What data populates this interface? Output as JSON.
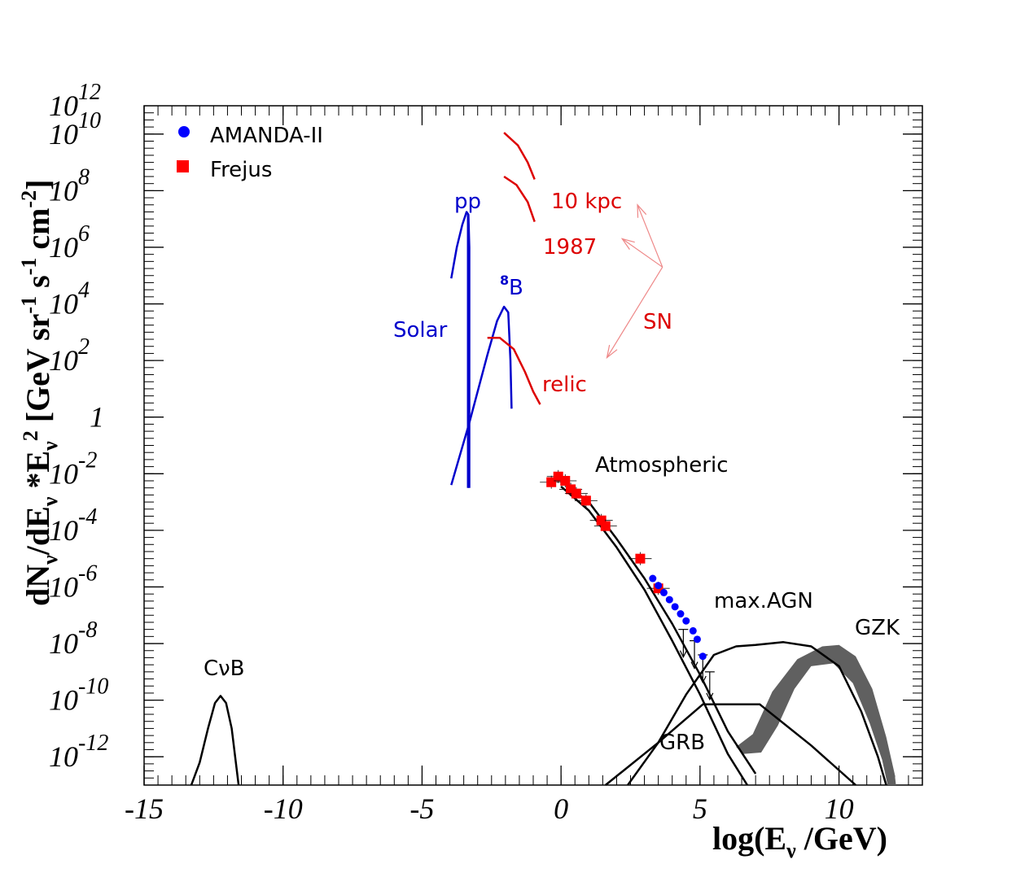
{
  "chart_data": {
    "type": "line",
    "title": "",
    "xlabel": "log(E",
    "xlabel_sub": "ν",
    "xlabel_tail": " /GeV)",
    "ylabel": "dN_ν/dE_ν *E_ν² [GeV sr⁻¹ s⁻¹ cm⁻²]",
    "ylabel_parts": {
      "a": "dN",
      "sub1": "ν",
      "b": "/dE",
      "sub2": "ν",
      "c": " *E",
      "sub3": "ν",
      "sup_sq": "2",
      "d": " [GeV sr",
      "sup1": "-1",
      "e": " s",
      "sup2": "-1",
      "f": " cm",
      "sup3": "-2",
      "g": "]"
    },
    "xlim": [
      -15,
      13
    ],
    "ylim_log10": [
      -13,
      11
    ],
    "x_ticks": [
      {
        "v": -15,
        "label": "-15"
      },
      {
        "v": -10,
        "label": "-10"
      },
      {
        "v": -5,
        "label": "-5"
      },
      {
        "v": 0,
        "label": "0"
      },
      {
        "v": 5,
        "label": "5"
      },
      {
        "v": 10,
        "label": "10"
      }
    ],
    "y_ticks": [
      {
        "v": -12,
        "base": "10",
        "exp": "-12"
      },
      {
        "v": -10,
        "base": "10",
        "exp": "-10"
      },
      {
        "v": -8,
        "base": "10",
        "exp": "-8"
      },
      {
        "v": -6,
        "base": "10",
        "exp": "-6"
      },
      {
        "v": -4,
        "base": "10",
        "exp": "-4"
      },
      {
        "v": -2,
        "base": "10",
        "exp": "-2"
      },
      {
        "v": 0,
        "base": "1",
        "exp": ""
      },
      {
        "v": 2,
        "base": "10",
        "exp": "2"
      },
      {
        "v": 4,
        "base": "10",
        "exp": "4"
      },
      {
        "v": 6,
        "base": "10",
        "exp": "6"
      },
      {
        "v": 8,
        "base": "10",
        "exp": "8"
      },
      {
        "v": 10,
        "base": "10",
        "exp": "10"
      },
      {
        "v": 12,
        "base": "10",
        "exp": "12"
      }
    ],
    "colors": {
      "blue": "#0000cc",
      "red": "#dd0000",
      "black": "#000000",
      "gzk": "#606060",
      "sn_arrow": "#ee8888",
      "marker_blue": "#0000ff",
      "marker_red": "#ff0000"
    },
    "legend": [
      {
        "label": "AMANDA-II",
        "marker": "circle",
        "color": "#0000ff"
      },
      {
        "label": "Frejus",
        "marker": "square",
        "color": "#ff0000"
      }
    ],
    "annotations": {
      "cnb": "CνB",
      "pp": "pp",
      "b8_sup": "8",
      "b8": "B",
      "solar": "Solar",
      "kpc": "10 kpc",
      "y1987": "1987",
      "sn": "SN",
      "relic": "relic",
      "atmospheric": "Atmospheric",
      "max_agn": "max.AGN",
      "gzk": "GZK",
      "grb": "GRB"
    },
    "series": [
      {
        "name": "CνB",
        "color": "#000000",
        "points": [
          [
            -13.3,
            -13
          ],
          [
            -13.0,
            -12.2
          ],
          [
            -12.7,
            -11.0
          ],
          [
            -12.45,
            -10.1
          ],
          [
            -12.25,
            -9.85
          ],
          [
            -12.05,
            -10.1
          ],
          [
            -11.85,
            -11.0
          ],
          [
            -11.7,
            -12.2
          ],
          [
            -11.6,
            -13
          ]
        ]
      },
      {
        "name": "pp",
        "color": "#0000cc",
        "points": [
          [
            -3.95,
            4.9
          ],
          [
            -3.75,
            6.0
          ],
          [
            -3.55,
            6.8
          ],
          [
            -3.4,
            7.25
          ],
          [
            -3.33,
            7.15
          ],
          [
            -3.3,
            6.0
          ],
          [
            -3.3,
            -2.5
          ]
        ]
      },
      {
        "name": "pp-vertical",
        "color": "#0000cc",
        "points": [
          [
            -3.35,
            7.2
          ],
          [
            -3.35,
            -2.5
          ]
        ]
      },
      {
        "name": "8B",
        "color": "#0000cc",
        "points": [
          [
            -3.95,
            -2.4
          ],
          [
            -3.3,
            -0.2
          ],
          [
            -2.65,
            2.2
          ],
          [
            -2.3,
            3.4
          ],
          [
            -2.05,
            3.9
          ],
          [
            -1.9,
            3.7
          ],
          [
            -1.82,
            2.0
          ],
          [
            -1.78,
            0.3
          ]
        ]
      },
      {
        "name": "SN 10 kpc",
        "color": "#dd0000",
        "points": [
          [
            -2.05,
            10.05
          ],
          [
            -1.55,
            9.6
          ],
          [
            -1.2,
            9.0
          ],
          [
            -0.95,
            8.4
          ]
        ]
      },
      {
        "name": "SN 1987",
        "color": "#dd0000",
        "points": [
          [
            -2.05,
            8.5
          ],
          [
            -1.6,
            8.2
          ],
          [
            -1.2,
            7.6
          ],
          [
            -0.95,
            6.9
          ]
        ]
      },
      {
        "name": "SN relic",
        "color": "#dd0000",
        "points": [
          [
            -2.65,
            2.8
          ],
          [
            -2.2,
            2.8
          ],
          [
            -1.7,
            2.4
          ],
          [
            -1.3,
            1.6
          ],
          [
            -1.0,
            0.9
          ],
          [
            -0.75,
            0.45
          ]
        ]
      },
      {
        "name": "atmospheric-upper",
        "color": "#000000",
        "points": [
          [
            0,
            -2.25
          ],
          [
            1,
            -3.0
          ],
          [
            2,
            -4.3
          ],
          [
            3,
            -5.7
          ],
          [
            4,
            -7.3
          ],
          [
            5,
            -9.1
          ],
          [
            6,
            -11.1
          ],
          [
            7.0,
            -12.6
          ]
        ]
      },
      {
        "name": "atmospheric-lower",
        "color": "#000000",
        "points": [
          [
            0,
            -2.45
          ],
          [
            1,
            -3.3
          ],
          [
            2,
            -4.6
          ],
          [
            3,
            -6.1
          ],
          [
            4,
            -7.9
          ],
          [
            5,
            -9.8
          ],
          [
            6,
            -11.9
          ],
          [
            6.7,
            -13
          ]
        ]
      },
      {
        "name": "max.AGN",
        "color": "#000000",
        "points": [
          [
            2.4,
            -13
          ],
          [
            3.5,
            -11.5
          ],
          [
            4.5,
            -9.8
          ],
          [
            5.5,
            -8.4
          ],
          [
            6.3,
            -8.1
          ],
          [
            7.0,
            -8.05
          ],
          [
            8.0,
            -7.95
          ],
          [
            9.0,
            -8.1
          ],
          [
            10.0,
            -8.8
          ],
          [
            10.8,
            -10.4
          ],
          [
            11.4,
            -12.0
          ],
          [
            11.7,
            -13
          ]
        ]
      },
      {
        "name": "GRB",
        "color": "#000000",
        "points": [
          [
            1.6,
            -13
          ],
          [
            3.5,
            -11.5
          ],
          [
            5.1,
            -10.15
          ],
          [
            7.15,
            -10.15
          ],
          [
            9.0,
            -11.6
          ],
          [
            10.6,
            -13
          ]
        ]
      }
    ],
    "gzk_band": {
      "upper": [
        [
          6.3,
          -11.65
        ],
        [
          6.9,
          -11.2
        ],
        [
          7.6,
          -9.7
        ],
        [
          8.5,
          -8.55
        ],
        [
          9.4,
          -8.1
        ],
        [
          10.0,
          -8.05
        ],
        [
          10.6,
          -8.45
        ],
        [
          11.2,
          -9.6
        ],
        [
          11.7,
          -11.3
        ],
        [
          12.0,
          -12.6
        ],
        [
          12.05,
          -13
        ]
      ],
      "lower": [
        [
          11.75,
          -13
        ],
        [
          11.55,
          -12.1
        ],
        [
          11.1,
          -10.8
        ],
        [
          10.5,
          -9.4
        ],
        [
          9.8,
          -8.7
        ],
        [
          9.0,
          -8.8
        ],
        [
          8.4,
          -9.6
        ],
        [
          7.8,
          -10.9
        ],
        [
          7.2,
          -11.85
        ],
        [
          6.55,
          -11.9
        ]
      ]
    },
    "frejus": [
      [
        -0.35,
        -2.3
      ],
      [
        -0.1,
        -2.1
      ],
      [
        0.15,
        -2.25
      ],
      [
        0.35,
        -2.55
      ],
      [
        0.55,
        -2.7
      ],
      [
        0.9,
        -2.95
      ],
      [
        1.45,
        -3.65
      ],
      [
        1.6,
        -3.85
      ],
      [
        2.85,
        -5.0
      ],
      [
        3.5,
        -6.05
      ]
    ],
    "amanda": [
      [
        3.3,
        -5.7
      ],
      [
        3.5,
        -5.95
      ],
      [
        3.7,
        -6.2
      ],
      [
        3.9,
        -6.45
      ],
      [
        4.1,
        -6.7
      ],
      [
        4.3,
        -6.95
      ],
      [
        4.5,
        -7.2
      ],
      [
        4.75,
        -7.55
      ],
      [
        4.9,
        -7.85
      ],
      [
        5.1,
        -8.45
      ]
    ],
    "upper_limits": [
      [
        4.4,
        -7.5
      ],
      [
        4.8,
        -7.9
      ],
      [
        5.1,
        -8.4
      ],
      [
        5.35,
        -9.0
      ]
    ],
    "sn_arrows": [
      {
        "from": [
          3.65,
          5.3
        ],
        "to": [
          2.75,
          7.5
        ]
      },
      {
        "from": [
          3.65,
          5.3
        ],
        "to": [
          2.2,
          6.3
        ]
      },
      {
        "from": [
          3.65,
          5.3
        ],
        "to": [
          1.65,
          2.1
        ]
      }
    ]
  }
}
